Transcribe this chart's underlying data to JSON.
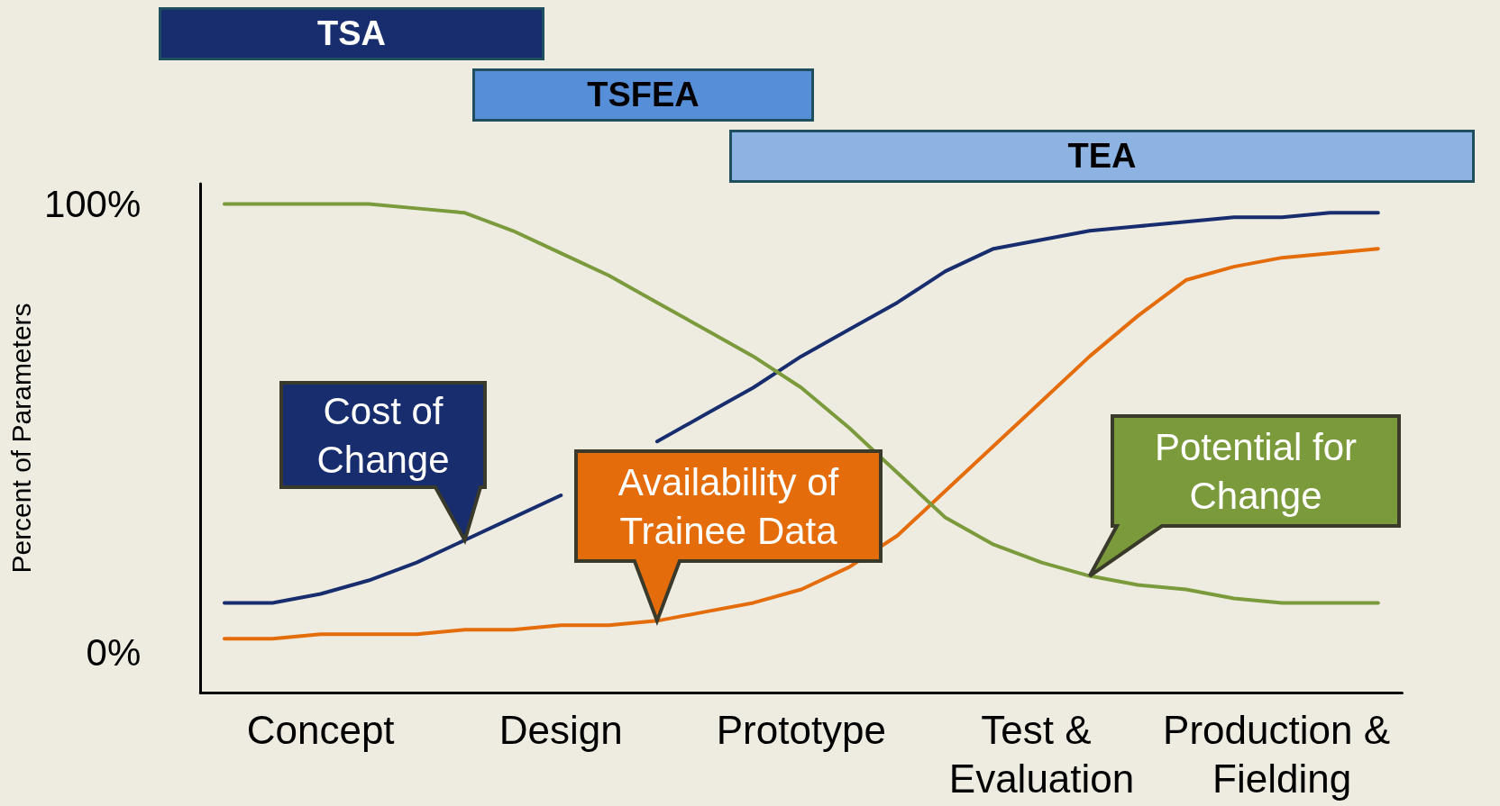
{
  "chart_data": {
    "type": "line",
    "ylabel": "Percent of Parameters",
    "categories": [
      null,
      null,
      "Concept",
      null,
      null,
      null,
      null,
      "Design",
      null,
      null,
      null,
      null,
      "Prototype",
      null,
      null,
      null,
      null,
      "Test & Evaluation",
      null,
      null,
      null,
      null,
      "Production & Fielding",
      null,
      null
    ],
    "ylim": [
      -9,
      104.5
    ],
    "yticks": [
      {
        "value": 0,
        "label": "0%"
      },
      {
        "value": 100,
        "label": "100%"
      }
    ],
    "grid": false,
    "legend": false,
    "marker": "none",
    "line_style": "solid",
    "series": [
      {
        "name": "Cost of Change",
        "color": "#172d6e",
        "values": [
          11,
          11,
          13,
          16,
          20,
          25,
          30,
          35,
          null,
          47,
          53,
          59,
          66,
          72,
          78,
          85,
          90,
          92,
          94,
          95,
          96,
          97,
          97,
          98,
          98
        ]
      },
      {
        "name": "Availability of Trainee Data",
        "color": "#e46c0a",
        "values": [
          3,
          3,
          4,
          4,
          4,
          5,
          5,
          6,
          6,
          7,
          9,
          11,
          14,
          19,
          26,
          36,
          46,
          56,
          66,
          75,
          83,
          86,
          88,
          89,
          90
        ]
      },
      {
        "name": "Potential for Change",
        "color": "#7a9a3c",
        "values": [
          100,
          100,
          100,
          100,
          99,
          98,
          94,
          89,
          84,
          78,
          72,
          66,
          59,
          50,
          40,
          30,
          24,
          20,
          17,
          15,
          14,
          12,
          11,
          11,
          11
        ]
      }
    ],
    "annotations": [
      "TSA",
      "TSFEA",
      "TEA"
    ]
  }
}
